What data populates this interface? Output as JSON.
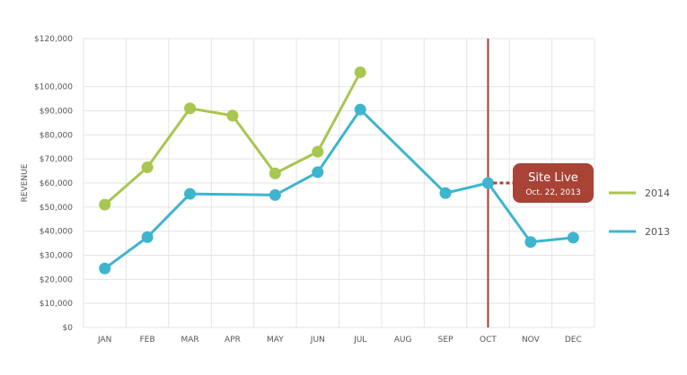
{
  "chart_data": {
    "type": "line",
    "categories": [
      "JAN",
      "FEB",
      "MAR",
      "APR",
      "MAY",
      "JUN",
      "JUL",
      "AUG",
      "SEP",
      "OCT",
      "NOV",
      "DEC"
    ],
    "ylabel": "REVENUE",
    "ylim": [
      0,
      120000
    ],
    "y_ticks": [
      {
        "value": 0,
        "label": "$0"
      },
      {
        "value": 10000,
        "label": "$10,000"
      },
      {
        "value": 20000,
        "label": "$20,000"
      },
      {
        "value": 30000,
        "label": "$30,000"
      },
      {
        "value": 40000,
        "label": "$40,000"
      },
      {
        "value": 50000,
        "label": "$50,000"
      },
      {
        "value": 60000,
        "label": "$60,000"
      },
      {
        "value": 70000,
        "label": "$70,000"
      },
      {
        "value": 80000,
        "label": "$80,000"
      },
      {
        "value": 90000,
        "label": "$90,000"
      },
      {
        "value": 100000,
        "label": "$100,000"
      },
      {
        "value": 120000,
        "label": "$120,000"
      }
    ],
    "grid": true,
    "legend_position": "right",
    "series": [
      {
        "name": "2014",
        "color": "#a9c650",
        "points": [
          {
            "x": "JAN",
            "y": 51000
          },
          {
            "x": "FEB",
            "y": 66500
          },
          {
            "x": "MAR",
            "y": 91000
          },
          {
            "x": "APR",
            "y": 88000
          },
          {
            "x": "MAY",
            "y": 64000
          },
          {
            "x": "JUN",
            "y": 73000
          },
          {
            "x": "JUL",
            "y": 106000
          }
        ]
      },
      {
        "name": "2013",
        "color": "#3db5cf",
        "points": [
          {
            "x": "JAN",
            "y": 24500
          },
          {
            "x": "FEB",
            "y": 37500
          },
          {
            "x": "MAR",
            "y": 55500
          },
          {
            "x": "MAY",
            "y": 55000
          },
          {
            "x": "JUN",
            "y": 64500
          },
          {
            "x": "JUL",
            "y": 90500
          },
          {
            "x": "SEP",
            "y": 55800
          },
          {
            "x": "OCT",
            "y": 60000
          },
          {
            "x": "NOV",
            "y": 35500
          },
          {
            "x": "DEC",
            "y": 37300
          }
        ]
      }
    ],
    "annotation": {
      "x": "OCT",
      "y": 60000,
      "line_color": "#a83b2e",
      "callout_color": "#a84336",
      "title": "Site Live",
      "subtitle": "Oct. 22, 2013"
    }
  }
}
